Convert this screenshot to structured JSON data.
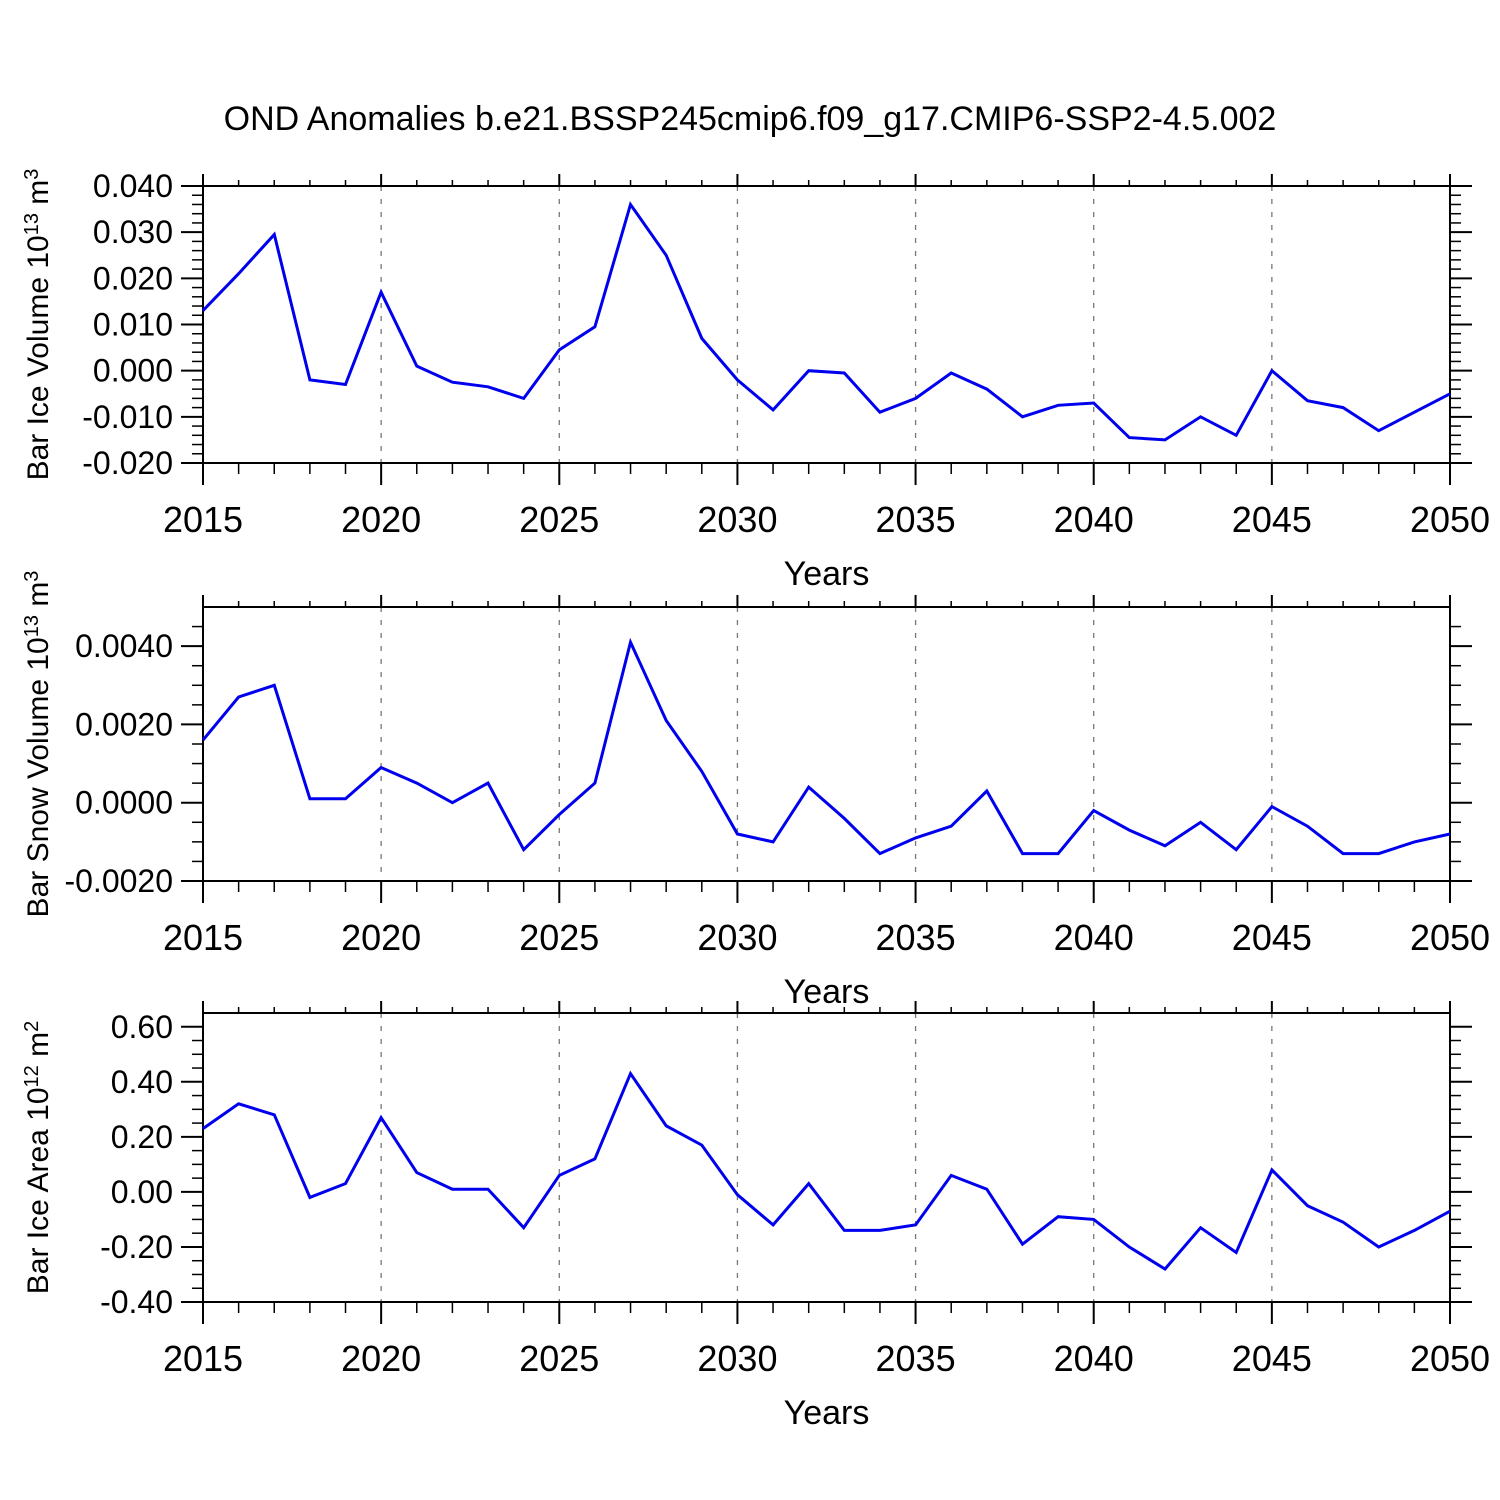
{
  "figure": {
    "title": "OND Anomalies b.e21.BSSP245cmip6.f09_g17.CMIP6-SSP2-4.5.002",
    "line_color": "#0000EE",
    "grid_color": "#777777",
    "axis_color": "#000000",
    "background": "#FFFFFF"
  },
  "chart_data": [
    {
      "type": "line",
      "name": "ice-volume",
      "ylabel_text": "Bar Ice Volume 10^13 m^3",
      "ylabel_parts": [
        {
          "t": "Bar Ice Volume 10"
        },
        {
          "t": "13",
          "sup": true
        },
        {
          "t": " m"
        },
        {
          "t": "3",
          "sup": true
        }
      ],
      "xlabel": "Years",
      "x": [
        2015,
        2016,
        2017,
        2018,
        2019,
        2020,
        2021,
        2022,
        2023,
        2024,
        2025,
        2026,
        2027,
        2028,
        2029,
        2030,
        2031,
        2032,
        2033,
        2034,
        2035,
        2036,
        2037,
        2038,
        2039,
        2040,
        2041,
        2042,
        2043,
        2044,
        2045,
        2046,
        2047,
        2048,
        2049,
        2050
      ],
      "values": [
        0.013,
        0.021,
        0.0295,
        -0.002,
        -0.003,
        0.017,
        0.001,
        -0.0025,
        -0.0035,
        -0.006,
        0.0045,
        0.0095,
        0.036,
        0.025,
        0.007,
        -0.002,
        -0.0085,
        0.0,
        -0.0005,
        -0.009,
        -0.006,
        -0.0005,
        -0.004,
        -0.01,
        -0.0075,
        -0.007,
        -0.0145,
        -0.015,
        -0.01,
        -0.014,
        0.0,
        -0.0065,
        -0.008,
        -0.013,
        -0.009,
        -0.005
      ],
      "ylim": [
        -0.02,
        0.04
      ],
      "ytick_values": [
        0.04,
        0.03,
        0.02,
        0.01,
        0.0,
        -0.01,
        -0.02
      ],
      "ytick_labels": [
        "0.040",
        "0.030",
        "0.020",
        "0.010",
        "0.000",
        "-0.010",
        "-0.020"
      ],
      "y_minor_step": 0.002,
      "xlim": [
        2015,
        2050
      ],
      "xtick_values": [
        2015,
        2020,
        2025,
        2030,
        2035,
        2040,
        2045,
        2050
      ],
      "xtick_labels": [
        "2015",
        "2020",
        "2025",
        "2030",
        "2035",
        "2040",
        "2045",
        "2050"
      ],
      "x_minor_step": 1,
      "grid_x": [
        2020,
        2025,
        2030,
        2035,
        2040,
        2045
      ],
      "grid_style": "dashed"
    },
    {
      "type": "line",
      "name": "snow-volume",
      "ylabel_text": "Bar Snow Volume 10^13 m^3",
      "ylabel_parts": [
        {
          "t": "Bar Snow Volume 10"
        },
        {
          "t": "13",
          "sup": true
        },
        {
          "t": " m"
        },
        {
          "t": "3",
          "sup": true
        }
      ],
      "xlabel": "Years",
      "x": [
        2015,
        2016,
        2017,
        2018,
        2019,
        2020,
        2021,
        2022,
        2023,
        2024,
        2025,
        2026,
        2027,
        2028,
        2029,
        2030,
        2031,
        2032,
        2033,
        2034,
        2035,
        2036,
        2037,
        2038,
        2039,
        2040,
        2041,
        2042,
        2043,
        2044,
        2045,
        2046,
        2047,
        2048,
        2049,
        2050
      ],
      "values": [
        0.0016,
        0.0027,
        0.003,
        0.0001,
        0.0001,
        0.0009,
        0.0005,
        0.0,
        0.0005,
        -0.0012,
        -0.0003,
        0.0005,
        0.0041,
        0.0021,
        0.0008,
        -0.0008,
        -0.001,
        0.0004,
        -0.0004,
        -0.0013,
        -0.0009,
        -0.0006,
        0.0003,
        -0.0013,
        -0.0013,
        -0.0002,
        -0.0007,
        -0.0011,
        -0.0005,
        -0.0012,
        -0.0001,
        -0.0006,
        -0.0013,
        -0.0013,
        -0.001,
        -0.0008
      ],
      "ylim": [
        -0.002,
        0.005
      ],
      "ytick_values": [
        0.004,
        0.002,
        0.0,
        -0.002
      ],
      "ytick_labels": [
        "0.0040",
        "0.0020",
        "0.0000",
        "-0.0020"
      ],
      "y_minor_step": 0.0005,
      "xlim": [
        2015,
        2050
      ],
      "xtick_values": [
        2015,
        2020,
        2025,
        2030,
        2035,
        2040,
        2045,
        2050
      ],
      "xtick_labels": [
        "2015",
        "2020",
        "2025",
        "2030",
        "2035",
        "2040",
        "2045",
        "2050"
      ],
      "x_minor_step": 1,
      "grid_x": [
        2020,
        2025,
        2030,
        2035,
        2040,
        2045
      ],
      "grid_style": "dashed"
    },
    {
      "type": "line",
      "name": "ice-area",
      "ylabel_text": "Bar Ice Area 10^12 m^2",
      "ylabel_parts": [
        {
          "t": "Bar Ice Area 10"
        },
        {
          "t": "12",
          "sup": true
        },
        {
          "t": " m"
        },
        {
          "t": "2",
          "sup": true
        }
      ],
      "xlabel": "Years",
      "x": [
        2015,
        2016,
        2017,
        2018,
        2019,
        2020,
        2021,
        2022,
        2023,
        2024,
        2025,
        2026,
        2027,
        2028,
        2029,
        2030,
        2031,
        2032,
        2033,
        2034,
        2035,
        2036,
        2037,
        2038,
        2039,
        2040,
        2041,
        2042,
        2043,
        2044,
        2045,
        2046,
        2047,
        2048,
        2049,
        2050
      ],
      "values": [
        0.23,
        0.32,
        0.28,
        -0.02,
        0.03,
        0.27,
        0.07,
        0.01,
        0.01,
        -0.13,
        0.06,
        0.12,
        0.43,
        0.24,
        0.17,
        -0.01,
        -0.12,
        0.03,
        -0.14,
        -0.14,
        -0.12,
        0.06,
        0.01,
        -0.19,
        -0.09,
        -0.1,
        -0.2,
        -0.28,
        -0.13,
        -0.22,
        0.08,
        -0.05,
        -0.11,
        -0.2,
        -0.14,
        -0.07
      ],
      "ylim": [
        -0.4,
        0.65
      ],
      "ytick_values": [
        0.6,
        0.4,
        0.2,
        0.0,
        -0.2,
        -0.4
      ],
      "ytick_labels": [
        "0.60",
        "0.40",
        "0.20",
        "0.00",
        "-0.20",
        "-0.40"
      ],
      "y_minor_step": 0.05,
      "xlim": [
        2015,
        2050
      ],
      "xtick_values": [
        2015,
        2020,
        2025,
        2030,
        2035,
        2040,
        2045,
        2050
      ],
      "xtick_labels": [
        "2015",
        "2020",
        "2025",
        "2030",
        "2035",
        "2040",
        "2045",
        "2050"
      ],
      "x_minor_step": 1,
      "grid_x": [
        2020,
        2025,
        2030,
        2035,
        2040,
        2045
      ],
      "grid_style": "dashed"
    }
  ]
}
